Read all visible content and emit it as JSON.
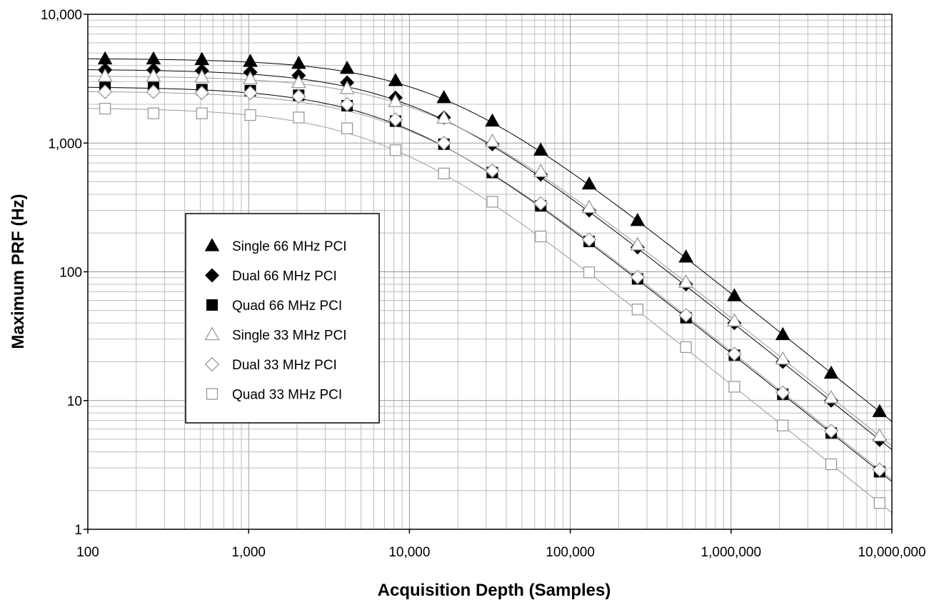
{
  "chart_data": {
    "type": "scatter",
    "xlabel": "Acquisition Depth (Samples)",
    "ylabel": "Maximum PRF (Hz)",
    "x_scale": "log",
    "y_scale": "log",
    "xlim": [
      100,
      10000000
    ],
    "ylim": [
      1,
      10000
    ],
    "x_ticks": [
      100,
      1000,
      10000,
      100000,
      1000000,
      10000000
    ],
    "x_tick_labels": [
      "100",
      "1,000",
      "10,000",
      "100,000",
      "1,000,000",
      "10,000,000"
    ],
    "y_ticks": [
      1,
      10,
      100,
      1000,
      10000
    ],
    "y_tick_labels": [
      "1",
      "10",
      "100",
      "1,000",
      "10,000"
    ],
    "grid": true,
    "legend_position": "center-left",
    "x": [
      128,
      256,
      512,
      1024,
      2048,
      4096,
      8192,
      16384,
      32768,
      65536,
      131072,
      262144,
      524288,
      1048576,
      2097152,
      4194304,
      8388608
    ],
    "series": [
      {
        "name": "Single 66 MHz PCI",
        "marker": "triangle",
        "filled": true,
        "color": "#000000",
        "values": [
          4500,
          4500,
          4450,
          4300,
          4150,
          3800,
          3050,
          2250,
          1480,
          880,
          480,
          250,
          130,
          65,
          32.5,
          16.3,
          8.2
        ]
      },
      {
        "name": "Dual 66 MHz PCI",
        "marker": "diamond",
        "filled": true,
        "color": "#000000",
        "values": [
          3700,
          3700,
          3650,
          3550,
          3350,
          2950,
          2250,
          1580,
          980,
          570,
          300,
          155,
          80,
          40,
          20,
          10,
          4.95
        ]
      },
      {
        "name": "Quad 66 MHz PCI",
        "marker": "square",
        "filled": true,
        "color": "#000000",
        "values": [
          2700,
          2700,
          2600,
          2550,
          2350,
          1950,
          1480,
          980,
          590,
          325,
          172,
          88,
          44,
          22.5,
          11.2,
          5.6,
          2.8
        ]
      },
      {
        "name": "Single 33 MHz PCI",
        "marker": "triangle",
        "filled": false,
        "color": "#9a9a9a",
        "values": [
          3300,
          3300,
          3250,
          3150,
          2950,
          2650,
          2100,
          1560,
          1030,
          600,
          315,
          162,
          83,
          41.5,
          21,
          10.5,
          5.3
        ]
      },
      {
        "name": "Dual 33 MHz PCI",
        "marker": "diamond",
        "filled": false,
        "color": "#9a9a9a",
        "values": [
          2500,
          2500,
          2450,
          2450,
          2300,
          2000,
          1520,
          1000,
          610,
          340,
          178,
          91,
          46,
          23,
          11.5,
          5.8,
          2.9
        ]
      },
      {
        "name": "Quad 33 MHz PCI",
        "marker": "square",
        "filled": false,
        "color": "#9a9a9a",
        "values": [
          1850,
          1700,
          1700,
          1650,
          1580,
          1300,
          880,
          580,
          350,
          188,
          99,
          51,
          26,
          12.8,
          6.4,
          3.2,
          1.6
        ]
      }
    ]
  }
}
